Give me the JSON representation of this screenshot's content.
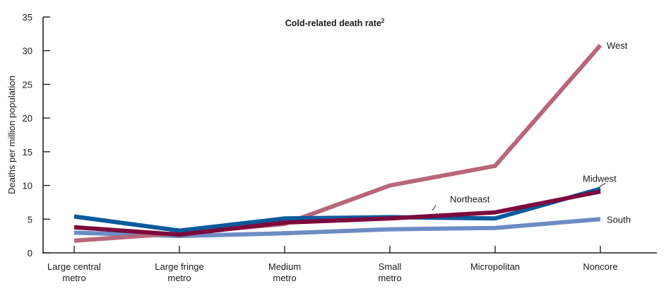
{
  "chart_data": {
    "type": "line",
    "title": "Cold-related death rate",
    "title_superscript": "2",
    "xlabel": "",
    "ylabel": "Deaths per million population",
    "ylim": [
      0,
      35
    ],
    "yticks": [
      0,
      5,
      10,
      15,
      20,
      25,
      30,
      35
    ],
    "grid": false,
    "categories": [
      [
        "Large central",
        "metro"
      ],
      [
        "Large fringe",
        "metro"
      ],
      [
        "Medium",
        "metro"
      ],
      [
        "Small",
        "metro"
      ],
      [
        "Micropolitan"
      ],
      [
        "Noncore"
      ]
    ],
    "series": [
      {
        "name": "South",
        "color": "#6d8cc4",
        "values": [
          3.0,
          2.5,
          2.9,
          3.5,
          3.7,
          5.0
        ]
      },
      {
        "name": "West",
        "color": "#b8677a",
        "values": [
          1.8,
          2.9,
          4.3,
          10.0,
          12.9,
          30.8
        ]
      },
      {
        "name": "Midwest",
        "color": "#0a5a9c",
        "values": [
          5.4,
          3.3,
          5.1,
          5.3,
          5.1,
          9.5
        ]
      },
      {
        "name": "Northeast",
        "color": "#7d0a3c",
        "values": [
          3.8,
          2.7,
          4.5,
          5.1,
          6.0,
          9.1
        ]
      }
    ],
    "annotations": [
      {
        "series": "West",
        "text": "West",
        "at_category": 5,
        "placement": "right"
      },
      {
        "series": "Midwest",
        "text": "Midwest",
        "at_category": 5,
        "placement": "above-with-leader"
      },
      {
        "series": "Northeast",
        "text": "Northeast",
        "at_category": 4,
        "placement": "above-with-leader"
      },
      {
        "series": "South",
        "text": "South",
        "at_category": 5,
        "placement": "right"
      }
    ],
    "legend": "inline-labels"
  }
}
